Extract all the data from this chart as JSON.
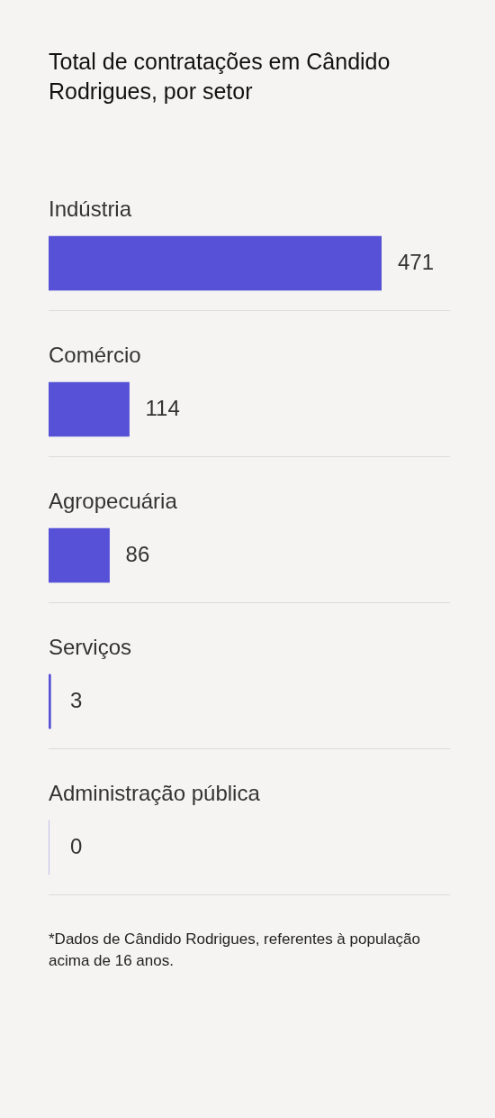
{
  "chart_data": {
    "type": "bar",
    "title": "Total de contratações em Cândido Rodrigues, por setor",
    "categories": [
      "Indústria",
      "Comércio",
      "Agropecuária",
      "Serviços",
      "Administração pública"
    ],
    "values": [
      471,
      114,
      86,
      3,
      0
    ],
    "color": "#5651d6",
    "orientation": "horizontal",
    "data_labels": true,
    "annotations": [
      "*Dados de Cândido Rodrigues, referentes à população acima de 16 anos."
    ]
  }
}
